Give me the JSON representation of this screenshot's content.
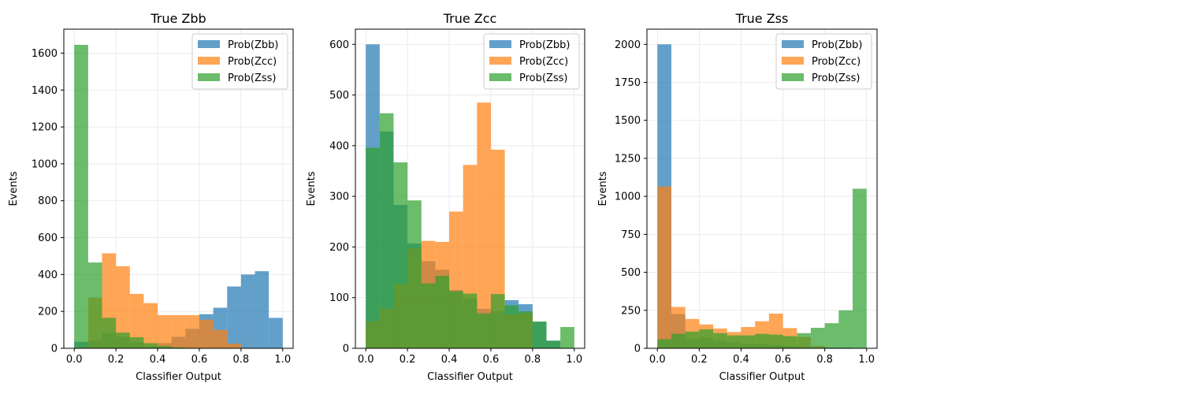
{
  "chart_data": [
    {
      "type": "bar",
      "title": "True Zbb",
      "xlabel": "Classifier Output",
      "ylabel": "Events",
      "xlim": [
        -0.05,
        1.05
      ],
      "ylim": [
        0,
        1730
      ],
      "xticks": [
        "0.0",
        "0.2",
        "0.4",
        "0.6",
        "0.8",
        "1.0"
      ],
      "yticks": [
        "0",
        "200",
        "400",
        "600",
        "800",
        "1000",
        "1200",
        "1400",
        "1600"
      ],
      "ytick_values": [
        0,
        200,
        400,
        600,
        800,
        1000,
        1200,
        1400,
        1600
      ],
      "bin_edges": [
        0.0,
        0.0667,
        0.1333,
        0.2,
        0.2667,
        0.3333,
        0.4,
        0.4667,
        0.5333,
        0.6,
        0.6667,
        0.7333,
        0.8,
        0.8667,
        0.9333,
        1.0
      ],
      "grid": true,
      "legend_position": "upper-right",
      "series": [
        {
          "name": "Prob(Zbb)",
          "color": "#1f77b4",
          "values": [
            35,
            42,
            82,
            62,
            32,
            12,
            28,
            62,
            105,
            185,
            220,
            335,
            400,
            418,
            165,
            5
          ]
        },
        {
          "name": "Prob(Zcc)",
          "color": "#ff7f0e",
          "values": [
            5,
            275,
            515,
            445,
            295,
            245,
            180,
            180,
            180,
            155,
            100,
            25,
            0,
            0,
            0,
            0
          ]
        },
        {
          "name": "Prob(Zss)",
          "color": "#2ca02c",
          "values": [
            1645,
            465,
            165,
            85,
            60,
            28,
            12,
            5,
            2,
            0,
            0,
            0,
            0,
            0,
            0,
            0
          ]
        }
      ]
    },
    {
      "type": "bar",
      "title": "True Zcc",
      "xlabel": "Classifier Output",
      "ylabel": "Events",
      "xlim": [
        -0.05,
        1.05
      ],
      "ylim": [
        0,
        630
      ],
      "xticks": [
        "0.0",
        "0.2",
        "0.4",
        "0.6",
        "0.8",
        "1.0"
      ],
      "yticks": [
        "0",
        "100",
        "200",
        "300",
        "400",
        "500",
        "600"
      ],
      "ytick_values": [
        0,
        100,
        200,
        300,
        400,
        500,
        600
      ],
      "bin_edges": [
        0.0,
        0.0667,
        0.1333,
        0.2,
        0.2667,
        0.3333,
        0.4,
        0.4667,
        0.5333,
        0.6,
        0.6667,
        0.7333,
        0.8,
        0.8667,
        0.9333,
        1.0
      ],
      "grid": true,
      "legend_position": "upper-right",
      "series": [
        {
          "name": "Prob(Zbb)",
          "color": "#1f77b4",
          "values": [
            600,
            428,
            283,
            207,
            172,
            155,
            115,
            98,
            78,
            73,
            95,
            87,
            52,
            15,
            0,
            0
          ]
        },
        {
          "name": "Prob(Zcc)",
          "color": "#ff7f0e",
          "values": [
            53,
            78,
            127,
            197,
            212,
            210,
            270,
            362,
            485,
            392,
            67,
            70,
            0,
            0,
            0,
            0
          ]
        },
        {
          "name": "Prob(Zss)",
          "color": "#2ca02c",
          "values": [
            396,
            464,
            367,
            292,
            128,
            143,
            113,
            108,
            69,
            107,
            85,
            73,
            53,
            15,
            42,
            52
          ]
        }
      ]
    },
    {
      "type": "bar",
      "title": "True Zss",
      "xlabel": "Classifier Output",
      "ylabel": "Events",
      "xlim": [
        -0.05,
        1.05
      ],
      "ylim": [
        0,
        2100
      ],
      "xticks": [
        "0.0",
        "0.2",
        "0.4",
        "0.6",
        "0.8",
        "1.0"
      ],
      "yticks": [
        "0",
        "250",
        "500",
        "750",
        "1000",
        "1250",
        "1500",
        "1750",
        "2000"
      ],
      "ytick_values": [
        0,
        250,
        500,
        750,
        1000,
        1250,
        1500,
        1750,
        2000
      ],
      "bin_edges": [
        0.0,
        0.0667,
        0.1333,
        0.2,
        0.2667,
        0.3333,
        0.4,
        0.4667,
        0.5333,
        0.6,
        0.6667,
        0.7333,
        0.8,
        0.8667,
        0.9333,
        1.0
      ],
      "grid": true,
      "legend_position": "upper-right",
      "series": [
        {
          "name": "Prob(Zbb)",
          "color": "#1f77b4",
          "values": [
            2000,
            225,
            60,
            70,
            50,
            40,
            30,
            30,
            20,
            15,
            10,
            5,
            5,
            5,
            2,
            0
          ]
        },
        {
          "name": "Prob(Zcc)",
          "color": "#ff7f0e",
          "values": [
            1065,
            272,
            193,
            157,
            130,
            107,
            140,
            178,
            228,
            133,
            75,
            15,
            0,
            0,
            0,
            0
          ]
        },
        {
          "name": "Prob(Zss)",
          "color": "#2ca02c",
          "values": [
            60,
            95,
            110,
            125,
            100,
            85,
            85,
            95,
            90,
            80,
            100,
            135,
            165,
            250,
            1050,
            0
          ]
        }
      ]
    }
  ]
}
